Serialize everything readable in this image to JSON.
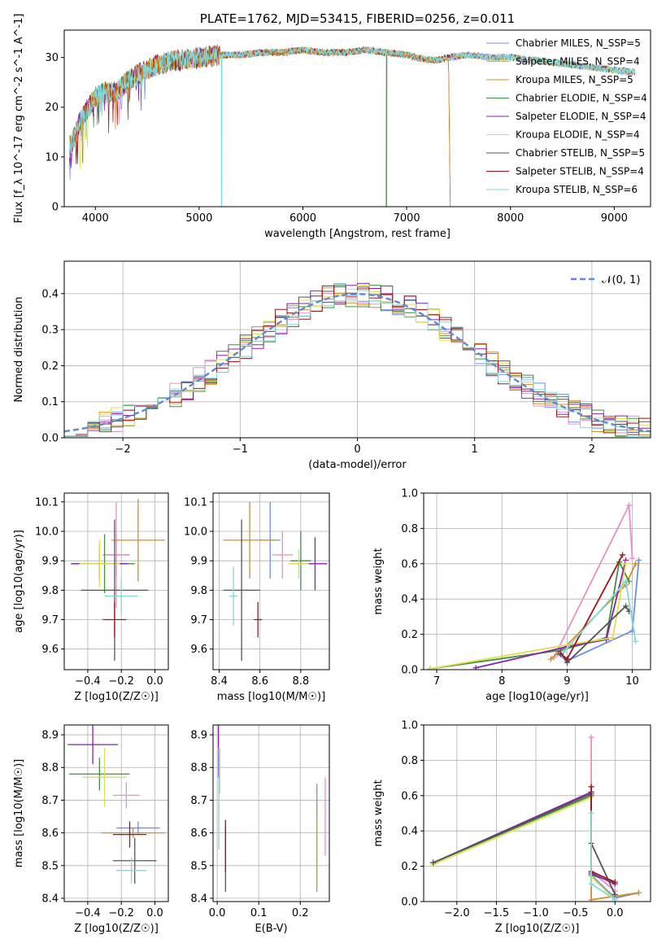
{
  "colors": [
    "#6f8fe0",
    "#e98fc7",
    "#d98c1f",
    "#3f8f3f",
    "#8b1fb0",
    "#dfe04a",
    "#555555",
    "#a01515",
    "#80dadc"
  ],
  "chart_data": [
    {
      "id": "spectrum",
      "type": "line",
      "title": "PLATE=1762, MJD=53415, FIBERID=0256, z=0.011",
      "xlabel": "wavelength [Angstrom, rest frame]",
      "ylabel": "Flux [f_λ 10^-17 erg cm^-2 s^-1 A^-1]",
      "xlim": [
        3700,
        9350
      ],
      "ylim": [
        0,
        35.5
      ],
      "xticks": [
        "4000",
        "5000",
        "6000",
        "7000",
        "8000",
        "9000"
      ],
      "yticks": [
        "0",
        "10",
        "20",
        "30"
      ],
      "grid": false,
      "legend_position": "top-right",
      "series": [
        {
          "name": "Chabrier MILES, N_SSP=5"
        },
        {
          "name": "Salpeter MILES, N_SSP=4"
        },
        {
          "name": "Kroupa MILES, N_SSP=5"
        },
        {
          "name": "Chabrier ELODIE, N_SSP=4"
        },
        {
          "name": "Salpeter ELODIE, N_SSP=4"
        },
        {
          "name": "Kroupa ELODIE, N_SSP=4"
        },
        {
          "name": "Chabrier STELIB, N_SSP=5"
        },
        {
          "name": "Salpeter STELIB, N_SSP=4"
        },
        {
          "name": "Kroupa STELIB, N_SSP=6"
        }
      ],
      "continuum": {
        "x": [
          3750,
          3800,
          3850,
          3900,
          4000,
          4100,
          4200,
          4300,
          4400,
          4500,
          4600,
          4700,
          4800,
          4900,
          5000,
          5200,
          5400,
          5600,
          5800,
          6000,
          6200,
          6400,
          6600,
          6800,
          7000,
          7100,
          7200,
          7300,
          7400,
          7600,
          7800,
          8000,
          8200,
          8400,
          8600,
          8800,
          9000,
          9200
        ],
        "y": [
          12,
          14,
          17,
          19,
          22,
          23,
          23,
          25,
          26.5,
          27.5,
          28.5,
          29,
          29.5,
          29.5,
          30,
          30.5,
          30.5,
          31,
          31,
          31.5,
          31,
          31,
          31.5,
          31,
          30.5,
          30,
          29.5,
          29.5,
          30,
          30.5,
          30,
          30,
          29.5,
          29,
          28.5,
          28,
          27.5,
          27
        ]
      }
    },
    {
      "id": "residuals",
      "type": "step",
      "xlabel": "(data-model)/error",
      "ylabel": "Normed distribution",
      "xlim": [
        -2.5,
        2.5
      ],
      "ylim": [
        0,
        0.49
      ],
      "xticks": [
        "−2",
        "−1",
        "0",
        "1",
        "2"
      ],
      "yticks": [
        "0.0",
        "0.1",
        "0.2",
        "0.3",
        "0.4"
      ],
      "grid": true,
      "legend_position": "top-right",
      "reference": {
        "name": "𝒩(0, 1)",
        "mean": 0,
        "sigma": 1
      },
      "bin_width": 0.1
    },
    {
      "id": "z-vs-age",
      "type": "errorbar",
      "xlabel": "Z [log10(Z/Z☉)]",
      "ylabel": "age [log10(age/yr)]",
      "xlim": [
        -0.54,
        0.08
      ],
      "ylim": [
        9.53,
        10.13
      ],
      "xticks": [
        "−0.4",
        "−0.2",
        "0.0"
      ],
      "yticks": [
        "9.6",
        "9.7",
        "9.8",
        "9.9",
        "10.0",
        "10.1"
      ],
      "grid": true,
      "points": [
        {
          "x": -0.23,
          "xerr": 0.08,
          "y": 9.92,
          "yerr": 0.07
        },
        {
          "x": -0.23,
          "xerr": 0.08,
          "y": 9.92,
          "yerr": 0.18
        },
        {
          "x": -0.1,
          "xerr": 0.16,
          "y": 9.97,
          "yerr": 0.14
        },
        {
          "x": -0.3,
          "xerr": 0.18,
          "y": 9.89,
          "yerr": 0.1
        },
        {
          "x": -0.33,
          "xerr": 0.17,
          "y": 9.89,
          "yerr": 0.06
        },
        {
          "x": -0.33,
          "xerr": 0.12,
          "y": 9.89,
          "yerr": 0.08
        },
        {
          "x": -0.24,
          "xerr": 0.2,
          "y": 9.8,
          "yerr": 0.24
        },
        {
          "x": -0.24,
          "xerr": 0.07,
          "y": 9.7,
          "yerr": 0.06
        },
        {
          "x": -0.2,
          "xerr": 0.1,
          "y": 9.78,
          "yerr": 0.06
        }
      ]
    },
    {
      "id": "mass-vs-age",
      "type": "errorbar",
      "xlabel": "mass [log10(M/M☉)]",
      "ylabel": "",
      "xlim": [
        8.37,
        8.94
      ],
      "ylim": [
        9.53,
        10.13
      ],
      "xticks": [
        "8.4",
        "8.6",
        "8.8"
      ],
      "yticks": [
        "9.6",
        "9.7",
        "9.8",
        "9.9",
        "10.0",
        "10.1"
      ],
      "grid": true,
      "points": [
        {
          "x": 8.65,
          "xerr": 0.05,
          "y": 9.97,
          "yerr": 0.13
        },
        {
          "x": 8.71,
          "xerr": 0.05,
          "y": 9.92,
          "yerr": 0.08
        },
        {
          "x": 8.55,
          "xerr": 0.13,
          "y": 9.97,
          "yerr": 0.13
        },
        {
          "x": 8.8,
          "xerr": 0.05,
          "y": 9.9,
          "yerr": 0.1
        },
        {
          "x": 8.87,
          "xerr": 0.06,
          "y": 9.89,
          "yerr": 0.09
        },
        {
          "x": 8.79,
          "xerr": 0.05,
          "y": 9.89,
          "yerr": 0.05
        },
        {
          "x": 8.51,
          "xerr": 0.09,
          "y": 9.8,
          "yerr": 0.24
        },
        {
          "x": 8.59,
          "xerr": 0.02,
          "y": 9.7,
          "yerr": 0.06
        },
        {
          "x": 8.47,
          "xerr": 0.02,
          "y": 9.78,
          "yerr": 0.1
        }
      ]
    },
    {
      "id": "age-vs-weight",
      "type": "line",
      "xlabel": "age [log10(age/yr)]",
      "ylabel": "mass weight",
      "xlim": [
        6.8,
        10.28
      ],
      "ylim": [
        0,
        1
      ],
      "xticks": [
        "7",
        "8",
        "9",
        "10"
      ],
      "yticks": [
        "0.0",
        "0.2",
        "0.4",
        "0.6",
        "0.8",
        "1.0"
      ],
      "grid": true,
      "series": [
        {
          "x": [
            8.85,
            9.0,
            10.0,
            10.1
          ],
          "y": [
            0.09,
            0.05,
            0.22,
            0.62
          ]
        },
        {
          "x": [
            8.8,
            9.95,
            10.0
          ],
          "y": [
            0.07,
            0.93,
            0.63
          ]
        },
        {
          "x": [
            8.75,
            9.0,
            9.9,
            10.05
          ],
          "y": [
            0.06,
            0.14,
            0.48,
            0.6
          ]
        },
        {
          "x": [
            6.9,
            8.9,
            9.6,
            9.8,
            9.95
          ],
          "y": [
            0.005,
            0.11,
            0.18,
            0.61,
            0.5
          ]
        },
        {
          "x": [
            7.6,
            9.0,
            9.6,
            9.9
          ],
          "y": [
            0.01,
            0.13,
            0.17,
            0.62
          ]
        },
        {
          "x": [
            6.9,
            9.0,
            9.7,
            9.9
          ],
          "y": [
            0.005,
            0.14,
            0.18,
            0.6
          ]
        },
        {
          "x": [
            8.9,
            9.0,
            9.9,
            9.95
          ],
          "y": [
            0.1,
            0.04,
            0.36,
            0.33
          ]
        },
        {
          "x": [
            8.9,
            9.0,
            9.85
          ],
          "y": [
            0.09,
            0.06,
            0.65
          ]
        },
        {
          "x": [
            8.95,
            9.9,
            10.05
          ],
          "y": [
            0.1,
            0.5,
            0.16
          ]
        }
      ]
    },
    {
      "id": "z-vs-mass",
      "type": "errorbar",
      "xlabel": "Z [log10(Z/Z☉)]",
      "ylabel": "mass [log10(M/M☉)]",
      "xlim": [
        -0.54,
        0.08
      ],
      "ylim": [
        8.39,
        8.93
      ],
      "xticks": [
        "−0.4",
        "−0.2",
        "0.0"
      ],
      "yticks": [
        "8.4",
        "8.5",
        "8.6",
        "8.7",
        "8.8",
        "8.9"
      ],
      "grid": true,
      "points": [
        {
          "x": -0.1,
          "xerr": 0.13,
          "y": 8.615,
          "yerr": 0.02
        },
        {
          "x": -0.17,
          "xerr": 0.08,
          "y": 8.715,
          "yerr": 0.04
        },
        {
          "x": -0.13,
          "xerr": 0.19,
          "y": 8.6,
          "yerr": 0.015
        },
        {
          "x": -0.33,
          "xerr": 0.18,
          "y": 8.78,
          "yerr": 0.05
        },
        {
          "x": -0.37,
          "xerr": 0.15,
          "y": 8.87,
          "yerr": 0.06
        },
        {
          "x": -0.3,
          "xerr": 0.13,
          "y": 8.77,
          "yerr": 0.09
        },
        {
          "x": -0.12,
          "xerr": 0.13,
          "y": 8.515,
          "yerr": 0.07
        },
        {
          "x": -0.15,
          "xerr": 0.1,
          "y": 8.595,
          "yerr": 0.04
        },
        {
          "x": -0.14,
          "xerr": 0.09,
          "y": 8.485,
          "yerr": 0.04
        }
      ]
    },
    {
      "id": "ebv-vs-mass",
      "type": "errorbar",
      "xlabel": "E(B-V)",
      "ylabel": "",
      "xlim": [
        -0.01,
        0.27
      ],
      "ylim": [
        8.39,
        8.93
      ],
      "xticks": [
        "0.0",
        "0.1",
        "0.2"
      ],
      "yticks": [
        "8.4",
        "8.5",
        "8.6",
        "8.7",
        "8.8",
        "8.9"
      ],
      "grid": true,
      "points": [
        {
          "x": 0.24,
          "y": 8.7,
          "yerr": 0.05
        },
        {
          "x": 0.26,
          "y": 8.65,
          "yerr": 0.12
        },
        {
          "x": 0.24,
          "y": 8.56,
          "yerr": 0.14
        },
        {
          "x": 0.005,
          "y": 8.79,
          "yerr": 0.07
        },
        {
          "x": 0.003,
          "y": 8.85,
          "yerr": 0.08
        },
        {
          "x": 0.004,
          "y": 8.76,
          "yerr": 0.1
        },
        {
          "x": 0.02,
          "y": 8.52,
          "yerr": 0.1
        },
        {
          "x": 0.02,
          "y": 8.56,
          "yerr": 0.08
        },
        {
          "x": 0.004,
          "y": 8.7,
          "yerr": 0.15
        }
      ]
    },
    {
      "id": "z-vs-weight",
      "type": "line",
      "xlabel": "Z [log10(Z/Z☉)]",
      "ylabel": "mass weight",
      "xlim": [
        -2.42,
        0.45
      ],
      "ylim": [
        0,
        1
      ],
      "xticks": [
        "−2.0",
        "−1.5",
        "−1.0",
        "−0.5",
        "0.0"
      ],
      "yticks": [
        "0.0",
        "0.2",
        "0.4",
        "0.6",
        "0.8",
        "1.0"
      ],
      "grid": true,
      "series": [
        {
          "x": [
            -0.3,
            -0.3,
            0.0,
            0.3
          ],
          "y": [
            0.62,
            0.15,
            0.02,
            0.05
          ]
        },
        {
          "x": [
            -0.3,
            -0.3,
            0.0
          ],
          "y": [
            0.93,
            0.17,
            0.06
          ]
        },
        {
          "x": [
            -0.3,
            -0.3,
            0.3
          ],
          "y": [
            0.6,
            0.01,
            0.05
          ]
        },
        {
          "x": [
            -2.3,
            -0.3,
            -0.3,
            0.0
          ],
          "y": [
            0.22,
            0.6,
            0.15,
            0.11
          ]
        },
        {
          "x": [
            -2.3,
            -0.3,
            -0.3,
            0.0
          ],
          "y": [
            0.22,
            0.62,
            0.16,
            0.1
          ]
        },
        {
          "x": [
            -2.3,
            -0.3,
            -0.3,
            0.0
          ],
          "y": [
            0.21,
            0.59,
            0.14,
            0.01
          ]
        },
        {
          "x": [
            -2.3,
            -0.3,
            -0.3,
            0.0
          ],
          "y": [
            0.22,
            0.61,
            0.33,
            0.04
          ]
        },
        {
          "x": [
            -0.3,
            -0.3,
            0.0
          ],
          "y": [
            0.65,
            0.17,
            0.11
          ]
        },
        {
          "x": [
            -0.3,
            -0.3,
            0.0
          ],
          "y": [
            0.5,
            0.1,
            0.01
          ]
        }
      ]
    }
  ]
}
